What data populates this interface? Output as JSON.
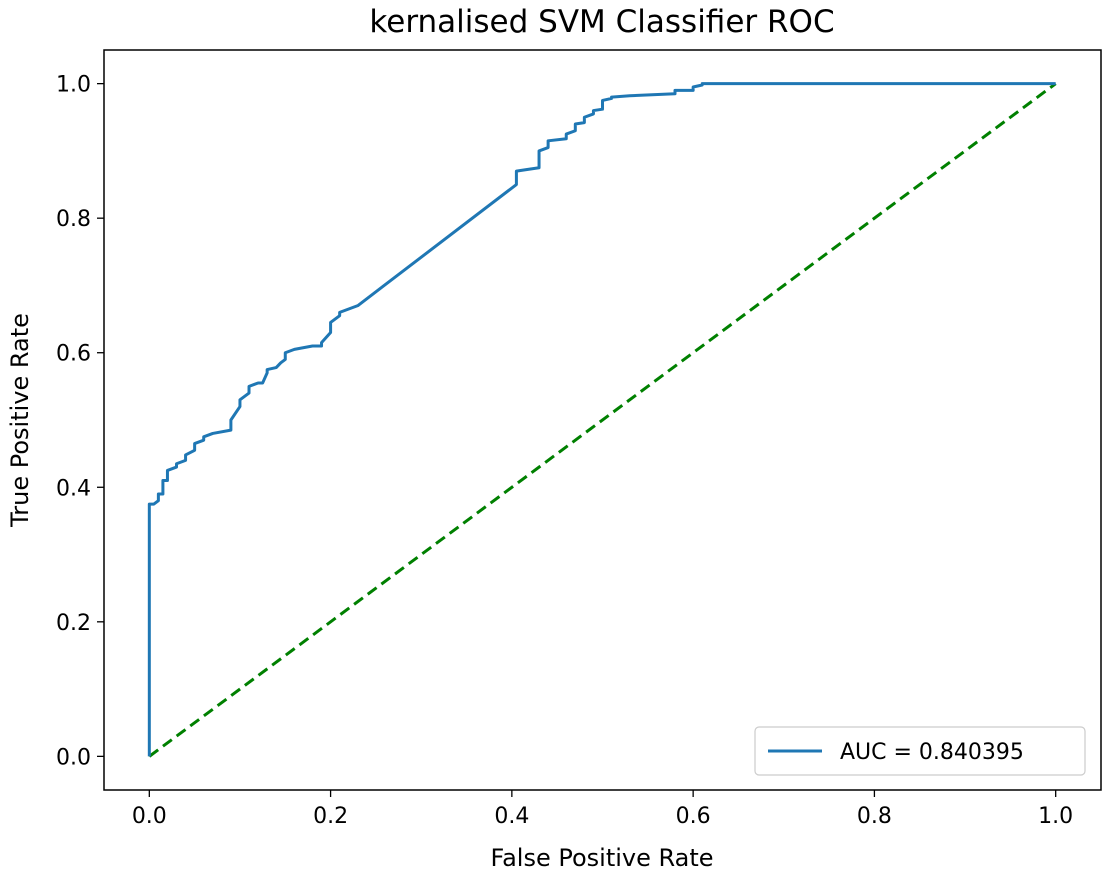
{
  "chart_data": {
    "type": "line",
    "title": "kernalised SVM Classifier ROC",
    "xlabel": "False Positive Rate",
    "ylabel": "True Positive Rate",
    "xlim": [
      -0.05,
      1.05
    ],
    "ylim": [
      -0.05,
      1.05
    ],
    "xticks": [
      0.0,
      0.2,
      0.4,
      0.6,
      0.8,
      1.0
    ],
    "yticks": [
      0.0,
      0.2,
      0.4,
      0.6,
      0.8,
      1.0
    ],
    "xtick_labels": [
      "0.0",
      "0.2",
      "0.4",
      "0.6",
      "0.8",
      "1.0"
    ],
    "ytick_labels": [
      "0.0",
      "0.2",
      "0.4",
      "0.6",
      "0.8",
      "1.0"
    ],
    "grid": false,
    "legend_position": "lower-right",
    "series": [
      {
        "name": "AUC = 0.840395",
        "color": "#1f77b4",
        "line_style": "solid",
        "x": [
          0.0,
          0.0,
          0.005,
          0.01,
          0.01,
          0.015,
          0.015,
          0.02,
          0.02,
          0.03,
          0.03,
          0.04,
          0.04,
          0.05,
          0.05,
          0.06,
          0.06,
          0.07,
          0.09,
          0.09,
          0.1,
          0.1,
          0.11,
          0.11,
          0.12,
          0.125,
          0.13,
          0.13,
          0.14,
          0.145,
          0.15,
          0.15,
          0.16,
          0.18,
          0.19,
          0.19,
          0.2,
          0.2,
          0.21,
          0.21,
          0.22,
          0.23,
          0.405,
          0.405,
          0.415,
          0.43,
          0.43,
          0.44,
          0.44,
          0.46,
          0.46,
          0.47,
          0.47,
          0.48,
          0.48,
          0.49,
          0.49,
          0.5,
          0.5,
          0.51,
          0.51,
          0.53,
          0.58,
          0.58,
          0.6,
          0.6,
          0.61,
          0.61,
          1.0
        ],
        "y": [
          0.0,
          0.375,
          0.375,
          0.38,
          0.39,
          0.39,
          0.41,
          0.41,
          0.425,
          0.43,
          0.435,
          0.44,
          0.448,
          0.455,
          0.465,
          0.47,
          0.475,
          0.48,
          0.485,
          0.5,
          0.52,
          0.53,
          0.54,
          0.55,
          0.555,
          0.555,
          0.57,
          0.575,
          0.578,
          0.585,
          0.59,
          0.6,
          0.605,
          0.61,
          0.61,
          0.615,
          0.63,
          0.645,
          0.655,
          0.66,
          0.665,
          0.67,
          0.85,
          0.87,
          0.872,
          0.875,
          0.9,
          0.905,
          0.915,
          0.918,
          0.925,
          0.93,
          0.94,
          0.942,
          0.95,
          0.955,
          0.96,
          0.962,
          0.975,
          0.978,
          0.98,
          0.982,
          0.985,
          0.99,
          0.99,
          0.995,
          0.998,
          1.0,
          1.0
        ]
      },
      {
        "name": "",
        "color": "#008000",
        "line_style": "dashed",
        "x": [
          0.0,
          1.0
        ],
        "y": [
          0.0,
          1.0
        ]
      }
    ]
  }
}
